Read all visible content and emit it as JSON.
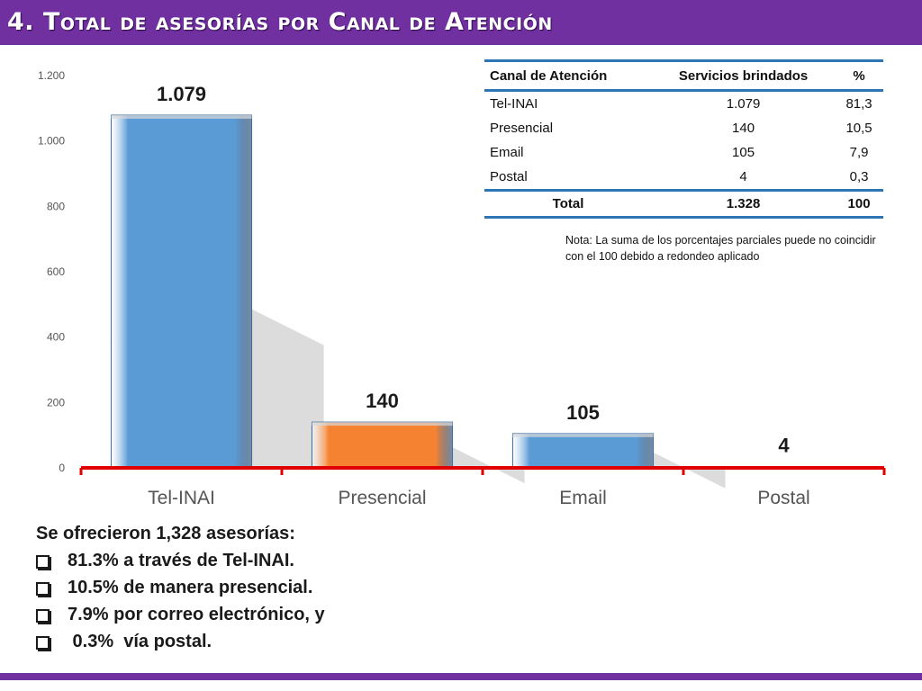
{
  "header": {
    "title": "4. Total de asesorías por Canal de Atención"
  },
  "colors": {
    "header_bg": "#7030a0",
    "bar_blue": "#5b9bd5",
    "bar_orange": "#f58230",
    "axis_red": "#e00000",
    "table_rule": "#2e75b6"
  },
  "chart_data": {
    "type": "bar",
    "categories": [
      "Tel-INAI",
      "Presencial",
      "Email",
      "Postal"
    ],
    "values": [
      1079,
      140,
      105,
      4
    ],
    "data_labels": [
      "1.079",
      "140",
      "105",
      "4"
    ],
    "bar_colors": [
      "#5b9bd5",
      "#f58230",
      "#5b9bd5",
      "#5b9bd5"
    ],
    "ylim": [
      0,
      1200
    ],
    "yticks": [
      0,
      200,
      400,
      600,
      800,
      1000,
      1200
    ],
    "ytick_labels": [
      "0",
      "200",
      "400",
      "600",
      "800",
      "1.000",
      "1.200"
    ],
    "grid": false,
    "style": "3d"
  },
  "table": {
    "headers": [
      "Canal de Atención",
      "Servicios brindados",
      "%"
    ],
    "rows": [
      [
        "Tel-INAI",
        "1.079",
        "81,3"
      ],
      [
        "Presencial",
        "140",
        "10,5"
      ],
      [
        "Email",
        "105",
        "7,9"
      ],
      [
        "Postal",
        "4",
        "0,3"
      ]
    ],
    "total": [
      "Total",
      "1.328",
      "100"
    ]
  },
  "note": "Nota: La suma de los porcentajes parciales puede no coincidir con el 100 debido a redondeo aplicado",
  "summary": {
    "heading": "Se ofrecieron 1,328 asesorías:",
    "items": [
      "81.3% a través de Tel-INAI.",
      "10.5% de manera presencial.",
      "7.9% por correo electrónico, y",
      " 0.3%  vía postal."
    ]
  }
}
